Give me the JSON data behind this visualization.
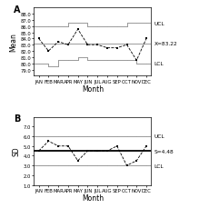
{
  "months": [
    "JAN",
    "FEB",
    "MAR",
    "APR",
    "MAY",
    "JUN",
    "JUL",
    "AUG",
    "SEP",
    "OCT",
    "NOV",
    "DEC"
  ],
  "panel_A": {
    "mean_data": [
      84.0,
      82.0,
      83.5,
      83.0,
      85.5,
      83.0,
      83.0,
      82.5,
      82.5,
      83.0,
      80.5,
      84.0
    ],
    "grand_mean": 83.22,
    "ucl_steps": [
      86.0,
      86.0,
      86.0,
      86.5,
      86.5,
      86.0,
      86.0,
      86.0,
      86.0,
      86.5,
      86.5,
      86.5
    ],
    "lcl_steps": [
      80.0,
      79.5,
      80.5,
      80.5,
      81.0,
      80.5,
      80.5,
      80.5,
      80.5,
      80.5,
      80.0,
      80.0
    ],
    "ylim": [
      78.0,
      89.0
    ],
    "yticks": [
      79.0,
      80.0,
      81.0,
      82.0,
      83.0,
      84.0,
      85.0,
      86.0,
      87.0,
      88.0
    ],
    "ytick_labels": [
      "79.0",
      "80.0",
      "81.0",
      "82.0",
      "83.0",
      "84.0",
      "85.0",
      "86.0",
      "87.0",
      "88.0"
    ],
    "ylabel": "Mean",
    "ucl_label": "UCL",
    "lcl_label": "LCL",
    "mean_label": "X=83.22"
  },
  "panel_B": {
    "sd_data": [
      4.5,
      5.5,
      5.0,
      5.0,
      3.5,
      4.5,
      4.5,
      4.5,
      5.0,
      3.0,
      3.5,
      5.0
    ],
    "grand_sd": 4.48,
    "ucl_steps": [
      6.0,
      6.0,
      6.0,
      6.0,
      6.0,
      6.0,
      6.0,
      6.0,
      6.0,
      6.0,
      6.0,
      6.0
    ],
    "lcl_steps": [
      3.0,
      3.0,
      3.0,
      3.0,
      3.0,
      3.0,
      3.0,
      3.0,
      3.0,
      3.0,
      3.0,
      3.0
    ],
    "ylim": [
      1.0,
      8.0
    ],
    "yticks": [
      1.0,
      2.0,
      3.0,
      4.0,
      5.0,
      6.0,
      7.0
    ],
    "ytick_labels": [
      "1.0",
      "2.0",
      "3.0",
      "4.0",
      "5.0",
      "6.0",
      "7.0"
    ],
    "ylabel": "SD",
    "ucl_label": "UCL",
    "lcl_label": "LCL",
    "sd_label": "S=4.48"
  },
  "line_color_data": "#000000",
  "line_color_control": "#999999",
  "line_color_mean_A": "#aaaaaa",
  "line_color_mean_B": "#000000",
  "label_fontsize": 4.2,
  "tick_fontsize": 3.8,
  "axis_label_fontsize": 5.5,
  "panel_label_fontsize": 7.0
}
